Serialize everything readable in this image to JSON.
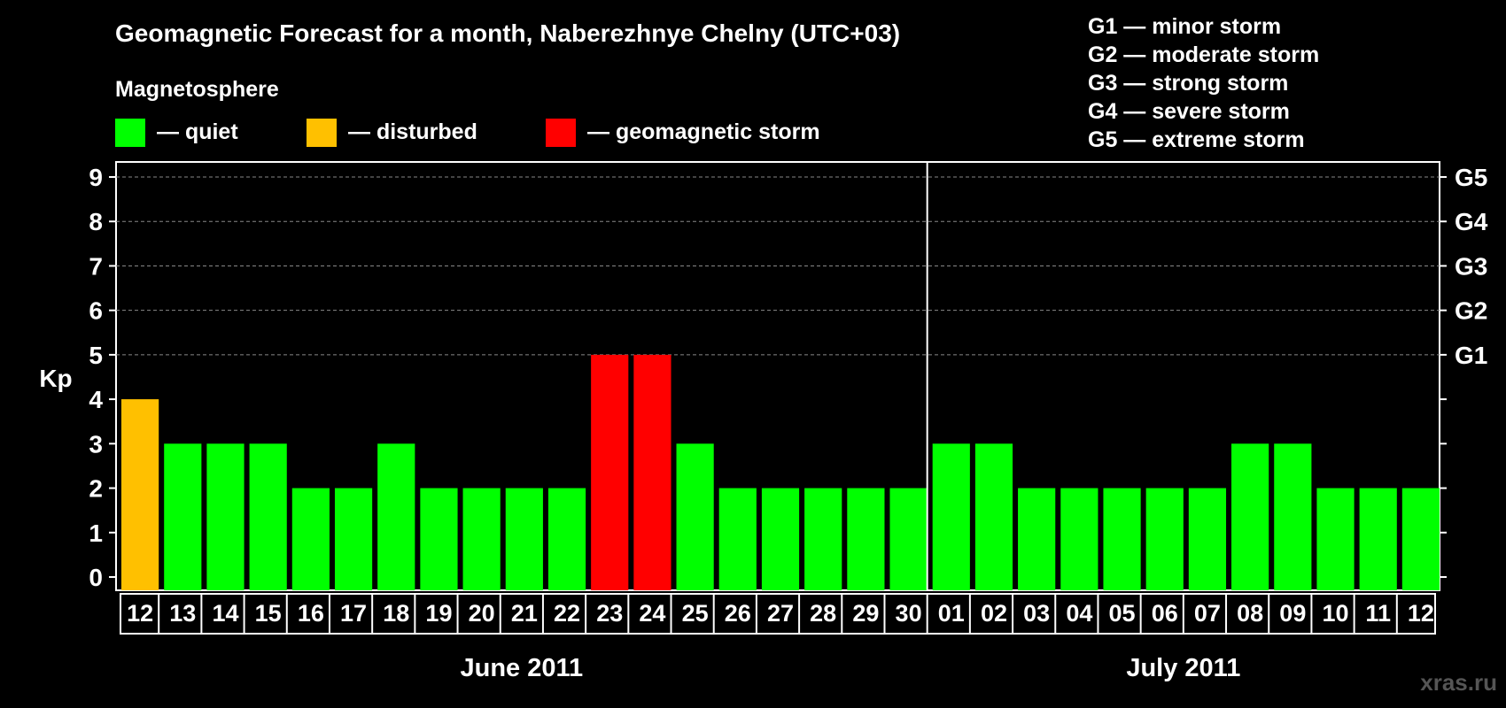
{
  "chart_data": {
    "type": "bar",
    "title": "Geomagnetic Forecast for a month, Naberezhnye Chelny (UTC+03)",
    "subtitle": "Magnetosphere",
    "ylabel": "Kp",
    "ylim": [
      0,
      9
    ],
    "yticks": [
      "0",
      "1",
      "2",
      "3",
      "4",
      "5",
      "6",
      "7",
      "8",
      "9"
    ],
    "grid": true,
    "categories": [
      "12",
      "13",
      "14",
      "15",
      "16",
      "17",
      "18",
      "19",
      "20",
      "21",
      "22",
      "23",
      "24",
      "25",
      "26",
      "27",
      "28",
      "29",
      "30",
      "01",
      "02",
      "03",
      "04",
      "05",
      "06",
      "07",
      "08",
      "09",
      "10",
      "11",
      "12"
    ],
    "values": [
      4,
      3,
      3,
      3,
      2,
      2,
      3,
      2,
      2,
      2,
      2,
      5,
      5,
      3,
      2,
      2,
      2,
      2,
      2,
      3,
      3,
      2,
      2,
      2,
      2,
      2,
      3,
      3,
      2,
      2,
      2
    ],
    "states": [
      "disturbed",
      "quiet",
      "quiet",
      "quiet",
      "quiet",
      "quiet",
      "quiet",
      "quiet",
      "quiet",
      "quiet",
      "quiet",
      "storm",
      "storm",
      "quiet",
      "quiet",
      "quiet",
      "quiet",
      "quiet",
      "quiet",
      "quiet",
      "quiet",
      "quiet",
      "quiet",
      "quiet",
      "quiet",
      "quiet",
      "quiet",
      "quiet",
      "quiet",
      "quiet",
      "quiet"
    ],
    "months": [
      {
        "label": "June 2011",
        "count": 19
      },
      {
        "label": "July 2011",
        "count": 12
      }
    ],
    "legend": [
      {
        "key": "quiet",
        "label": "— quiet",
        "color": "#00ff00"
      },
      {
        "key": "disturbed",
        "label": "— disturbed",
        "color": "#ffc000"
      },
      {
        "key": "storm",
        "label": "— geomagnetic storm",
        "color": "#ff0000"
      }
    ],
    "g_levels": [
      {
        "kp": 5,
        "label": "G1"
      },
      {
        "kp": 6,
        "label": "G2"
      },
      {
        "kp": 7,
        "label": "G3"
      },
      {
        "kp": 8,
        "label": "G4"
      },
      {
        "kp": 9,
        "label": "G5"
      }
    ],
    "g_descriptions": [
      "G1 — minor storm",
      "G2 — moderate storm",
      "G3 — strong storm",
      "G4 — severe storm",
      "G5 — extreme storm"
    ]
  },
  "watermark": "xras.ru",
  "colors": {
    "background": "#000000",
    "axis": "#ffffff",
    "grid": "#888888",
    "text": "#ffffff",
    "watermark": "#555555"
  }
}
